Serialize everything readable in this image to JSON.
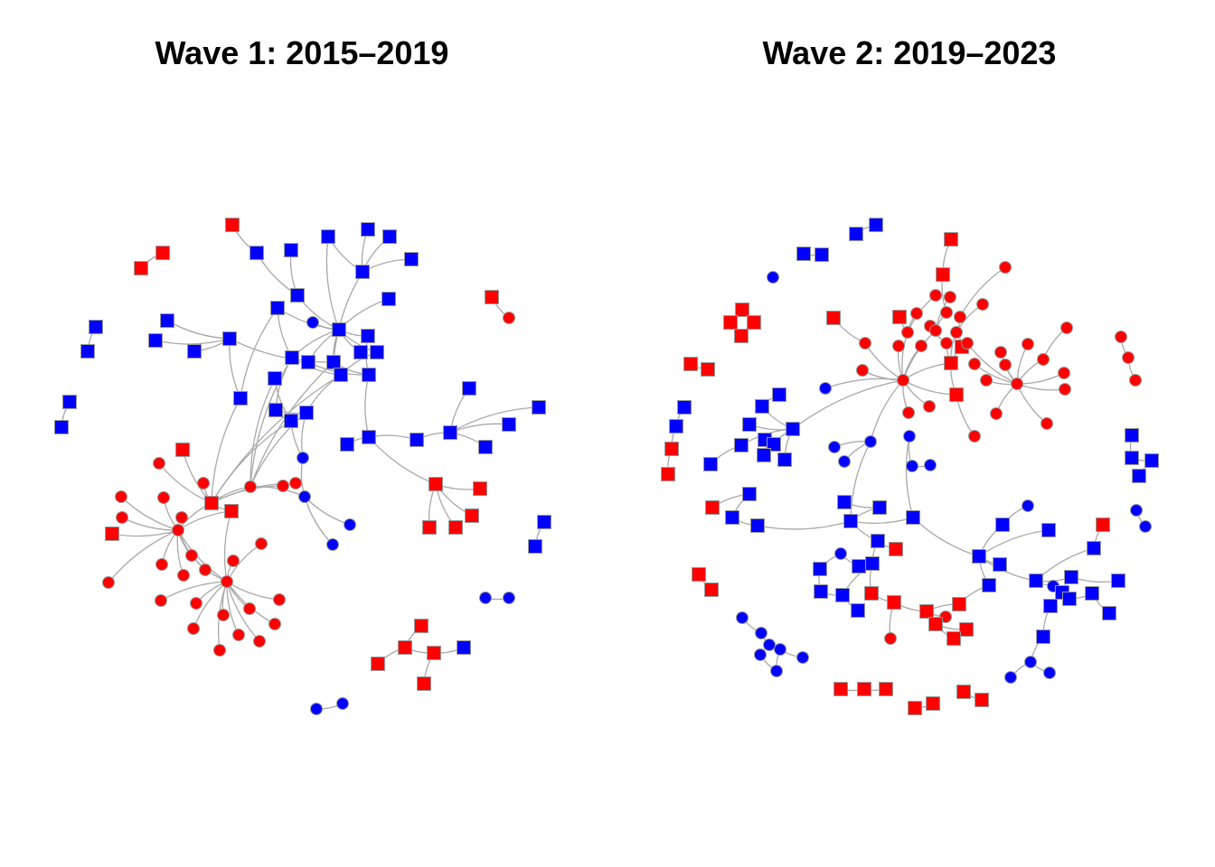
{
  "panels": [
    {
      "title": "Wave 1: 2015–2019"
    },
    {
      "title": "Wave 2: 2019–2023"
    }
  ],
  "colors": {
    "red": "#ff0000",
    "blue": "#0000ff",
    "edge": "#a8a8a8",
    "node_border": "#999999"
  },
  "node_shapes": [
    "square",
    "circle"
  ],
  "chart_data": [
    {
      "type": "network",
      "title": "Wave 1: 2015–2019"
    },
    {
      "type": "network",
      "title": "Wave 2: 2019–2023"
    }
  ]
}
